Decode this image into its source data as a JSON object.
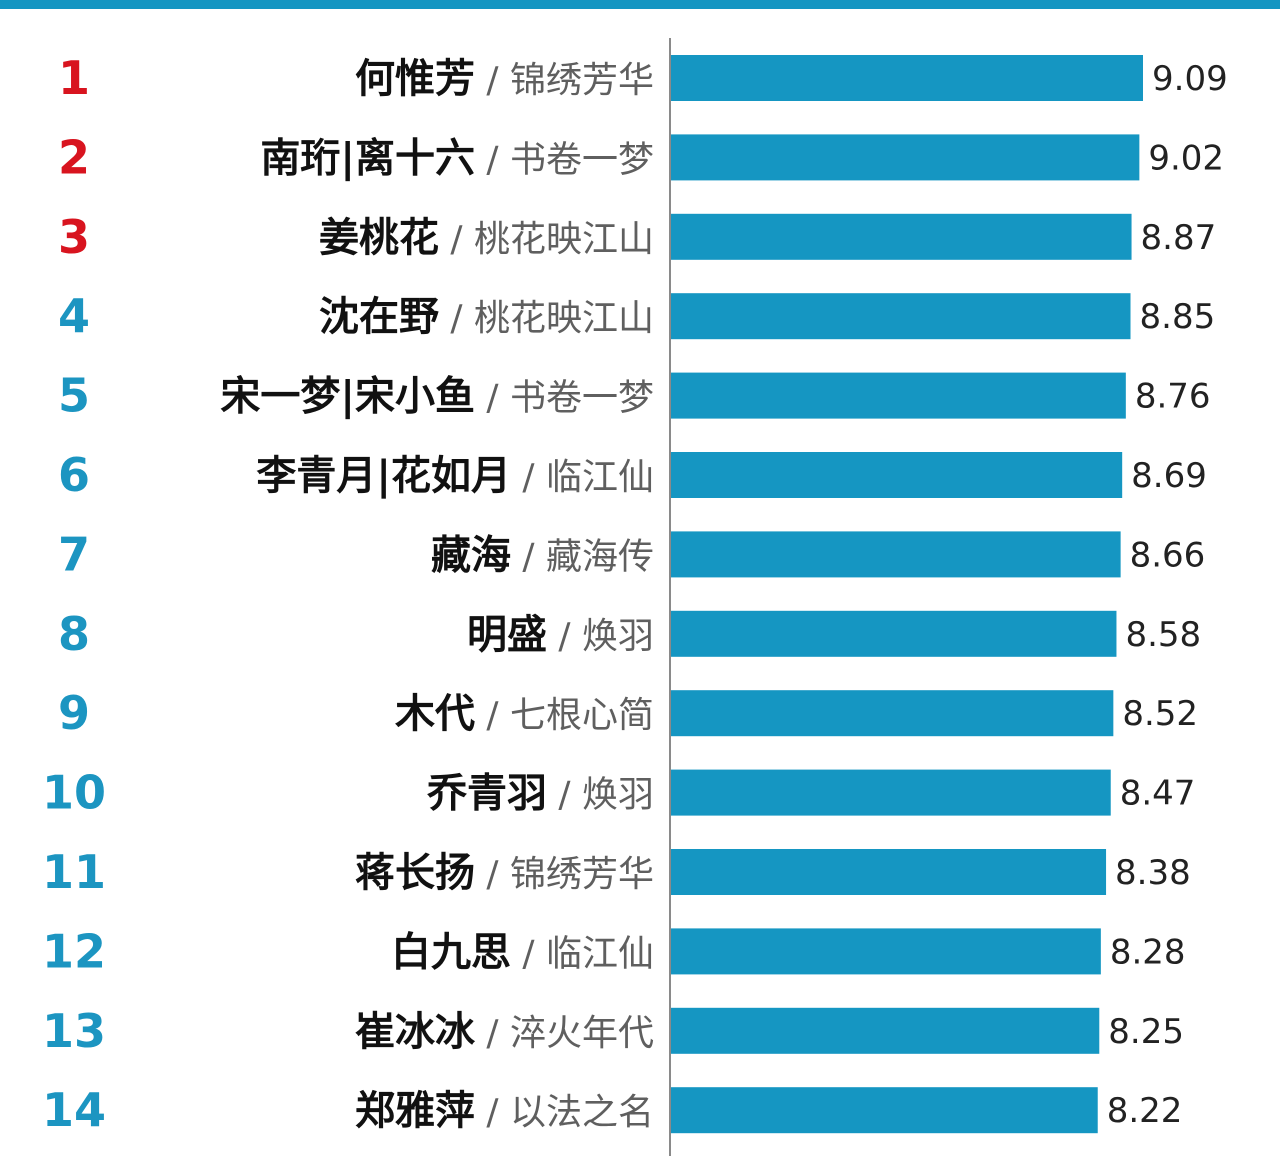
{
  "colors": {
    "bar": "#1596c2",
    "top_rank": "#d8141f",
    "other_rank": "#1c95c1",
    "axis": "#8a8a8a",
    "header_rule": "#1596c2"
  },
  "chart_data": {
    "type": "bar",
    "orientation": "horizontal",
    "title": "",
    "xlabel": "",
    "ylabel": "",
    "xlim": [
      0,
      9.09
    ],
    "grid": false,
    "separator": "/",
    "highlight_top_n": 3,
    "rows": [
      {
        "rank": "1",
        "name": "何惟芳",
        "drama": "锦绣芳华",
        "value": 9.09,
        "value_label": "9.09"
      },
      {
        "rank": "2",
        "name": "南珩|离十六",
        "drama": "书卷一梦",
        "value": 9.02,
        "value_label": "9.02"
      },
      {
        "rank": "3",
        "name": "姜桃花",
        "drama": "桃花映江山",
        "value": 8.87,
        "value_label": "8.87"
      },
      {
        "rank": "4",
        "name": "沈在野",
        "drama": "桃花映江山",
        "value": 8.85,
        "value_label": "8.85"
      },
      {
        "rank": "5",
        "name": "宋一梦|宋小鱼",
        "drama": "书卷一梦",
        "value": 8.76,
        "value_label": "8.76"
      },
      {
        "rank": "6",
        "name": "李青月|花如月",
        "drama": "临江仙",
        "value": 8.69,
        "value_label": "8.69"
      },
      {
        "rank": "7",
        "name": "藏海",
        "drama": "藏海传",
        "value": 8.66,
        "value_label": "8.66"
      },
      {
        "rank": "8",
        "name": "明盛",
        "drama": "焕羽",
        "value": 8.58,
        "value_label": "8.58"
      },
      {
        "rank": "9",
        "name": "木代",
        "drama": "七根心简",
        "value": 8.52,
        "value_label": "8.52"
      },
      {
        "rank": "10",
        "name": "乔青羽",
        "drama": "焕羽",
        "value": 8.47,
        "value_label": "8.47"
      },
      {
        "rank": "11",
        "name": "蒋长扬",
        "drama": "锦绣芳华",
        "value": 8.38,
        "value_label": "8.38"
      },
      {
        "rank": "12",
        "name": "白九思",
        "drama": "临江仙",
        "value": 8.28,
        "value_label": "8.28"
      },
      {
        "rank": "13",
        "name": "崔冰冰",
        "drama": "淬火年代",
        "value": 8.25,
        "value_label": "8.25"
      },
      {
        "rank": "14",
        "name": "郑雅萍",
        "drama": "以法之名",
        "value": 8.22,
        "value_label": "8.22"
      }
    ]
  }
}
